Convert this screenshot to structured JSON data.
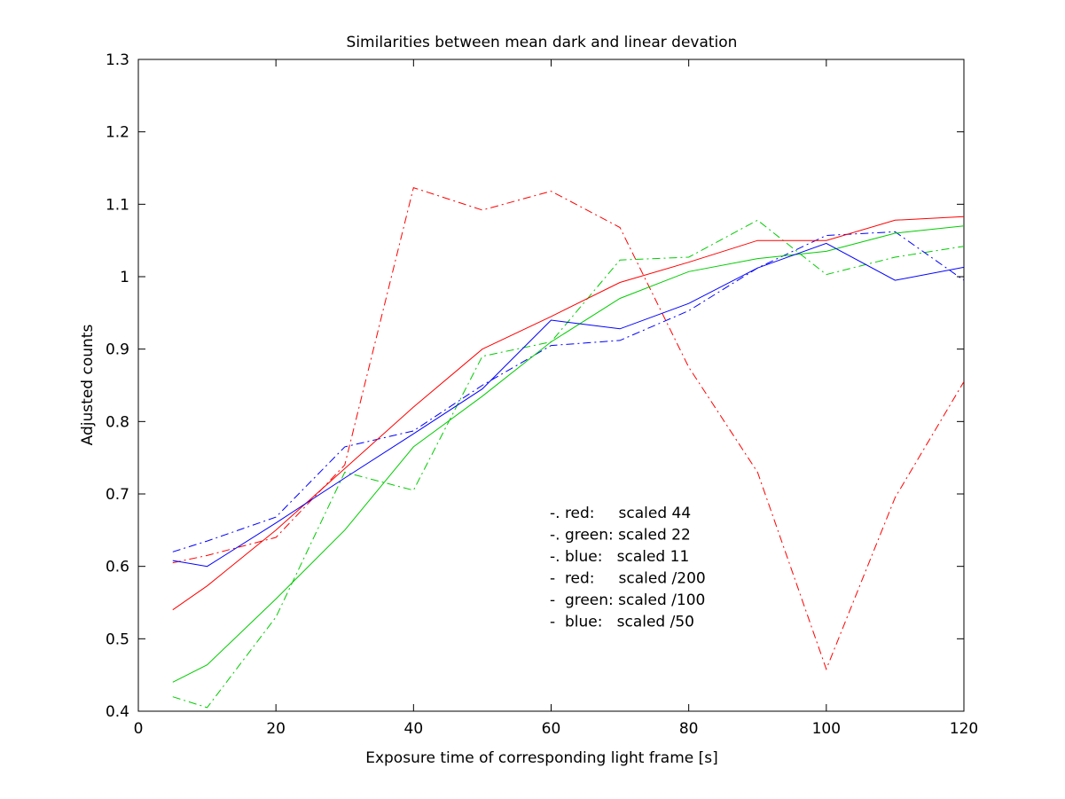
{
  "chart_data": {
    "type": "line",
    "title": "Similarities between mean dark and linear devation",
    "xlabel": "Exposure time of corresponding light frame [s]",
    "ylabel": "Adjusted counts",
    "xlim": [
      0,
      120
    ],
    "ylim": [
      0.4,
      1.3
    ],
    "xticks": [
      0,
      20,
      40,
      60,
      80,
      100,
      120
    ],
    "yticks": [
      0.4,
      0.5,
      0.6,
      0.7,
      0.8,
      0.9,
      1.0,
      1.1,
      1.2,
      1.3
    ],
    "xtick_labels": [
      "0",
      "20",
      "40",
      "60",
      "80",
      "100",
      "120"
    ],
    "ytick_labels": [
      "0.4",
      "0.5",
      "0.6",
      "0.7",
      "0.8",
      "0.9",
      "1",
      "1.1",
      "1.2",
      "1.3"
    ],
    "grid": false,
    "legend_position": "center-bottom",
    "legend": [
      "-. red:     scaled 44",
      "-. green: scaled 22",
      "-. blue:   scaled 11",
      "-  red:     scaled /200",
      "-  green: scaled /100",
      "-  blue:   scaled /50"
    ],
    "x": [
      5,
      10,
      20,
      30,
      40,
      50,
      60,
      70,
      80,
      90,
      100,
      110,
      120
    ],
    "series": [
      {
        "color": "#ff0000",
        "style": "dashdot",
        "values": [
          0.605,
          0.615,
          0.64,
          0.74,
          1.123,
          1.092,
          1.118,
          1.068,
          0.875,
          0.73,
          0.458,
          0.695,
          0.855
        ]
      },
      {
        "color": "#00cc00",
        "style": "dashdot",
        "values": [
          0.42,
          0.405,
          0.53,
          0.73,
          0.705,
          0.89,
          0.91,
          1.023,
          1.027,
          1.078,
          1.003,
          1.027,
          1.042
        ]
      },
      {
        "color": "#0000ff",
        "style": "dashdot",
        "values": [
          0.62,
          0.635,
          0.668,
          0.765,
          0.787,
          0.85,
          0.905,
          0.912,
          0.953,
          1.012,
          1.057,
          1.062,
          0.995
        ]
      },
      {
        "color": "#ff0000",
        "style": "solid",
        "values": [
          0.54,
          0.573,
          0.65,
          0.735,
          0.82,
          0.9,
          0.945,
          0.992,
          1.02,
          1.05,
          1.05,
          1.078,
          1.083
        ]
      },
      {
        "color": "#00cc00",
        "style": "solid",
        "values": [
          0.44,
          0.464,
          0.555,
          0.65,
          0.765,
          0.835,
          0.91,
          0.97,
          1.007,
          1.025,
          1.035,
          1.06,
          1.07
        ]
      },
      {
        "color": "#0000ff",
        "style": "solid",
        "values": [
          0.608,
          0.6,
          0.66,
          0.722,
          0.783,
          0.845,
          0.94,
          0.928,
          0.963,
          1.012,
          1.046,
          0.995,
          1.013
        ]
      }
    ]
  }
}
